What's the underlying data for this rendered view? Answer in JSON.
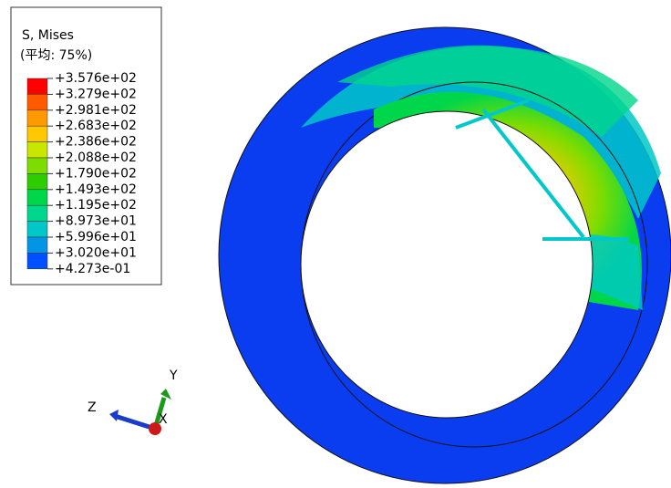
{
  "legend": {
    "title": "S, Mises",
    "subtitle": "(平均: 75%)",
    "labels": [
      "+3.576e+02",
      "+3.279e+02",
      "+2.981e+02",
      "+2.683e+02",
      "+2.386e+02",
      "+2.088e+02",
      "+1.790e+02",
      "+1.493e+02",
      "+1.195e+02",
      "+8.973e+01",
      "+5.996e+01",
      "+3.020e+01",
      "+4.273e-01"
    ],
    "colors": [
      "#ff0000",
      "#ff5a00",
      "#ff9900",
      "#ffc800",
      "#c8e600",
      "#7ddc00",
      "#2dcd00",
      "#00d64a",
      "#00d68c",
      "#00c8c8",
      "#0096e6",
      "#0050ff",
      "#0a1eff"
    ]
  },
  "triad": {
    "y": "Y",
    "z": "Z",
    "x": "X"
  }
}
